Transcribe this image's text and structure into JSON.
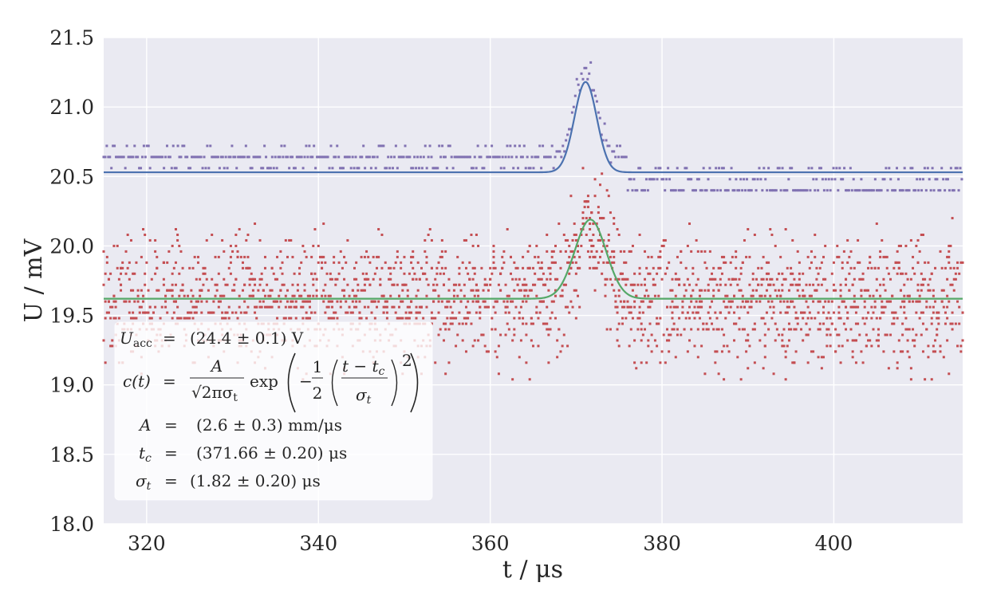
{
  "chart_data": {
    "type": "scatter",
    "title": "",
    "xlabel": "t / μs",
    "ylabel": "U / mV",
    "xlim": [
      315,
      415
    ],
    "ylim": [
      18.0,
      21.5
    ],
    "xticks": [
      320,
      340,
      360,
      380,
      400
    ],
    "yticks": [
      18.0,
      18.5,
      19.0,
      19.5,
      20.0,
      20.5,
      21.0,
      21.5
    ],
    "xtick_labels": [
      "320",
      "340",
      "360",
      "380",
      "400"
    ],
    "ytick_labels": [
      "18.0",
      "18.5",
      "19.0",
      "19.5",
      "20.0",
      "20.5",
      "21.0",
      "21.5"
    ],
    "grid": true,
    "background": "#eaeaf2",
    "series": [
      {
        "kind": "noise-scatter",
        "color": "#c44e52",
        "baseline": 19.6,
        "spread": 0.22,
        "peak": {
          "center": 371.66,
          "sigma": 1.82,
          "amplitude": 0.57
        }
      },
      {
        "kind": "step-scatter",
        "color": "#8172b2",
        "peak": {
          "center": 371.1,
          "sigma": 1.3,
          "amplitude": 0.65
        },
        "left_levels": [
          20.64,
          20.56,
          20.72
        ],
        "right_levels": [
          20.4,
          20.48,
          20.56
        ],
        "step_at": 376
      },
      {
        "kind": "fit-line",
        "color": "#4c72b0",
        "baseline": 20.53,
        "peak": {
          "center": 371.1,
          "sigma": 1.3,
          "amplitude": 0.65
        }
      },
      {
        "kind": "fit-line",
        "color": "#55a868",
        "baseline": 19.62,
        "peak": {
          "center": 371.66,
          "sigma": 1.82,
          "amplitude": 0.57
        }
      }
    ]
  },
  "legend": {
    "uacc_lhs": "U",
    "uacc_sub": "acc",
    "uacc_eq": "=",
    "uacc_rhs": "(24.4 ± 0.1) V",
    "ct_lhs": "c(t)",
    "ct_eq": "=",
    "ct_num": "A",
    "ct_den": "√2πσ",
    "ct_den_sub": "t",
    "ct_exp": "exp",
    "ct_half_num": "1",
    "ct_half_den": "2",
    "ct_inner_num": "t − t",
    "ct_inner_num_sub": "c",
    "ct_inner_den": "σ",
    "ct_inner_den_sub": "t",
    "ct_power": "2",
    "a_lhs": "A",
    "a_eq": "=",
    "a_rhs": "(2.6 ± 0.3) mm/μs",
    "tc_lhs": "t",
    "tc_sub": "c",
    "tc_eq": "=",
    "tc_rhs": "(371.66 ± 0.20) μs",
    "sig_lhs": "σ",
    "sig_sub": "t",
    "sig_eq": "=",
    "sig_rhs": "(1.82 ± 0.20) μs"
  }
}
